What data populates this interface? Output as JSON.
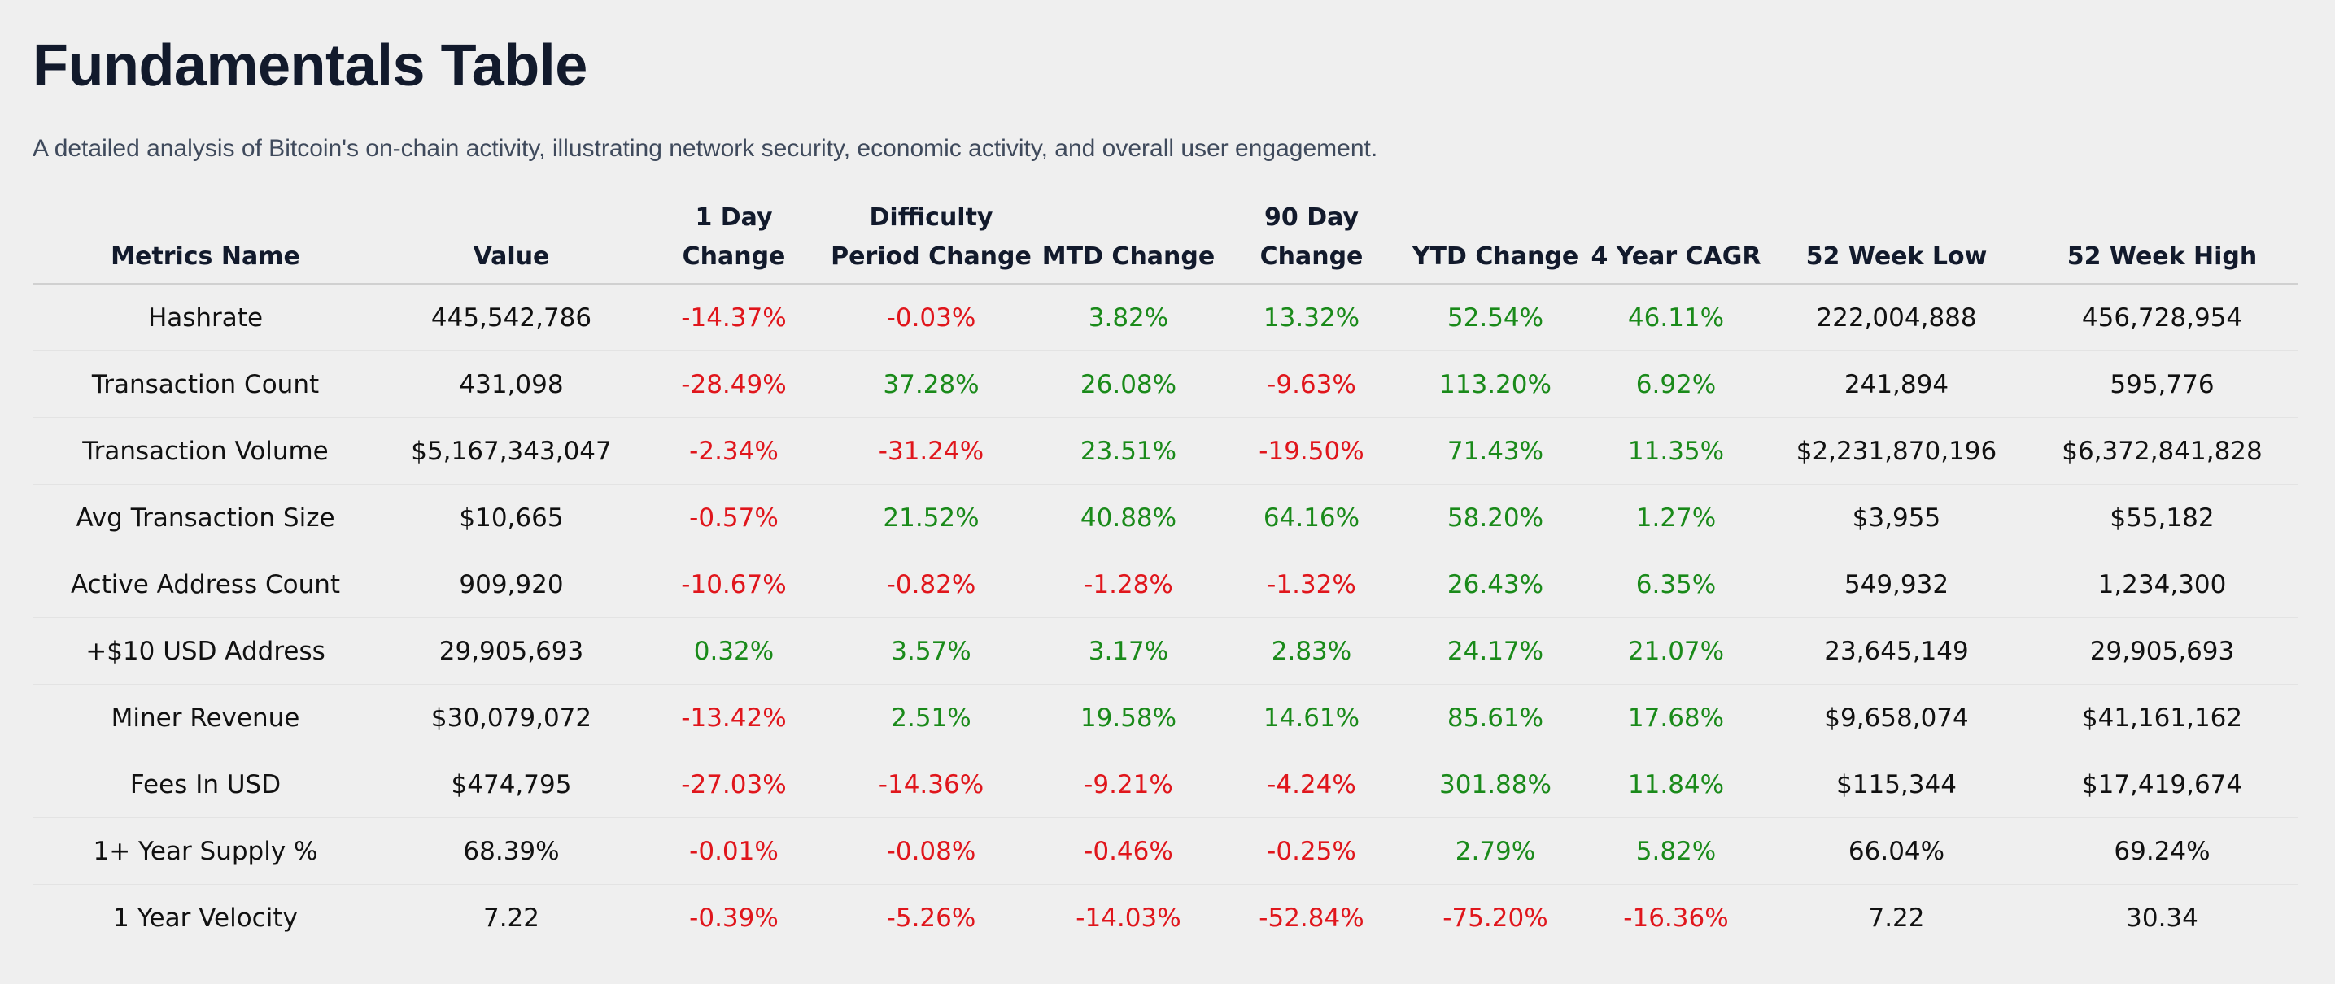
{
  "header": {
    "title": "Fundamentals Table",
    "subtitle": "A detailed analysis of Bitcoin's on-chain activity, illustrating network security, economic activity, and overall user engagement."
  },
  "colors": {
    "positive": "#1a8a1a",
    "negative": "#e0161c",
    "title": "#121a2c",
    "background": "#efefef"
  },
  "table": {
    "columns": [
      "Metrics Name",
      "Value",
      "1 Day Change",
      "Difficulty Period Change",
      "MTD Change",
      "90 Day Change",
      "YTD Change",
      "4 Year CAGR",
      "52 Week Low",
      "52 Week High"
    ],
    "rows": [
      [
        "Hashrate",
        "445,542,786",
        "-14.37%",
        "-0.03%",
        "3.82%",
        "13.32%",
        "52.54%",
        "46.11%",
        "222,004,888",
        "456,728,954"
      ],
      [
        "Transaction Count",
        "431,098",
        "-28.49%",
        "37.28%",
        "26.08%",
        "-9.63%",
        "113.20%",
        "6.92%",
        "241,894",
        "595,776"
      ],
      [
        "Transaction Volume",
        "$5,167,343,047",
        "-2.34%",
        "-31.24%",
        "23.51%",
        "-19.50%",
        "71.43%",
        "11.35%",
        "$2,231,870,196",
        "$6,372,841,828"
      ],
      [
        "Avg Transaction Size",
        "$10,665",
        "-0.57%",
        "21.52%",
        "40.88%",
        "64.16%",
        "58.20%",
        "1.27%",
        "$3,955",
        "$55,182"
      ],
      [
        "Active Address Count",
        "909,920",
        "-10.67%",
        "-0.82%",
        "-1.28%",
        "-1.32%",
        "26.43%",
        "6.35%",
        "549,932",
        "1,234,300"
      ],
      [
        "+$10 USD Address",
        "29,905,693",
        "0.32%",
        "3.57%",
        "3.17%",
        "2.83%",
        "24.17%",
        "21.07%",
        "23,645,149",
        "29,905,693"
      ],
      [
        "Miner Revenue",
        "$30,079,072",
        "-13.42%",
        "2.51%",
        "19.58%",
        "14.61%",
        "85.61%",
        "17.68%",
        "$9,658,074",
        "$41,161,162"
      ],
      [
        "Fees In USD",
        "$474,795",
        "-27.03%",
        "-14.36%",
        "-9.21%",
        "-4.24%",
        "301.88%",
        "11.84%",
        "$115,344",
        "$17,419,674"
      ],
      [
        "1+ Year Supply %",
        "68.39%",
        "-0.01%",
        "-0.08%",
        "-0.46%",
        "-0.25%",
        "2.79%",
        "5.82%",
        "66.04%",
        "69.24%"
      ],
      [
        "1 Year Velocity",
        "7.22",
        "-0.39%",
        "-5.26%",
        "-14.03%",
        "-52.84%",
        "-75.20%",
        "-16.36%",
        "7.22",
        "30.34"
      ]
    ]
  }
}
